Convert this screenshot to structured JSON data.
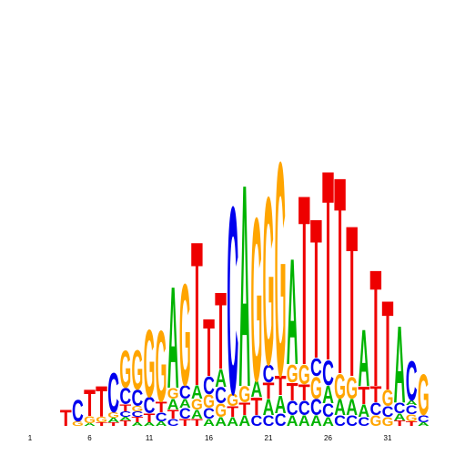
{
  "chart_data": {
    "type": "logo",
    "xlim": [
      0,
      35
    ],
    "xticks": [
      1,
      6,
      11,
      16,
      21,
      26,
      31
    ],
    "ylim": [
      0,
      300
    ],
    "colors": {
      "A": "#00b300",
      "C": "#0000ee",
      "G": "#ffa500",
      "T": "#ee0000"
    },
    "columns": [
      {
        "x": 4,
        "letters": [
          "T"
        ],
        "values": [
          18
        ]
      },
      {
        "x": 5,
        "letters": [
          "G",
          "C"
        ],
        "values": [
          5,
          25
        ]
      },
      {
        "x": 6,
        "letters": [
          "A",
          "G",
          "T"
        ],
        "values": [
          3,
          8,
          30
        ]
      },
      {
        "x": 7,
        "letters": [
          "T",
          "G",
          "T"
        ],
        "values": [
          4,
          6,
          35
        ]
      },
      {
        "x": 8,
        "letters": [
          "T",
          "A",
          "G",
          "C"
        ],
        "values": [
          4,
          5,
          6,
          45
        ]
      },
      {
        "x": 9,
        "letters": [
          "T",
          "A",
          "C",
          "T",
          "C",
          "G"
        ],
        "values": [
          6,
          4,
          6,
          8,
          18,
          42
        ]
      },
      {
        "x": 10,
        "letters": [
          "A",
          "T",
          "C",
          "G",
          "C",
          "G"
        ],
        "values": [
          4,
          6,
          6,
          6,
          18,
          45
        ]
      },
      {
        "x": 11,
        "letters": [
          "A",
          "T",
          "C",
          "G"
        ],
        "values": [
          4,
          10,
          18,
          76
        ]
      },
      {
        "x": 12,
        "letters": [
          "A",
          "C",
          "T",
          "G"
        ],
        "values": [
          5,
          10,
          12,
          80
        ]
      },
      {
        "x": 13,
        "letters": [
          "C",
          "T",
          "A",
          "G",
          "A"
        ],
        "values": [
          8,
          10,
          12,
          12,
          115
        ]
      },
      {
        "x": 14,
        "letters": [
          "T",
          "C",
          "A",
          "C",
          "G"
        ],
        "values": [
          8,
          12,
          10,
          15,
          115
        ]
      },
      {
        "x": 15,
        "letters": [
          "T",
          "A",
          "G",
          "A",
          "T"
        ],
        "values": [
          8,
          10,
          12,
          15,
          163
        ]
      },
      {
        "x": 16,
        "letters": [
          "A",
          "C",
          "G",
          "C",
          "T"
        ],
        "values": [
          8,
          12,
          15,
          20,
          65
        ]
      },
      {
        "x": 17,
        "letters": [
          "A",
          "G",
          "C",
          "A",
          "T"
        ],
        "values": [
          10,
          15,
          18,
          20,
          87
        ]
      },
      {
        "x": 18,
        "letters": [
          "A",
          "T",
          "G",
          "C"
        ],
        "values": [
          10,
          12,
          14,
          212
        ]
      },
      {
        "x": 19,
        "letters": [
          "A",
          "T",
          "G",
          "A"
        ],
        "values": [
          12,
          14,
          18,
          229
        ]
      },
      {
        "x": 20,
        "letters": [
          "C",
          "T",
          "A",
          "G"
        ],
        "values": [
          12,
          20,
          18,
          185
        ]
      },
      {
        "x": 21,
        "letters": [
          "C",
          "A",
          "T",
          "C",
          "G"
        ],
        "values": [
          12,
          18,
          18,
          20,
          190
        ]
      },
      {
        "x": 22,
        "letters": [
          "C",
          "A",
          "T",
          "G"
        ],
        "values": [
          14,
          20,
          22,
          242
        ]
      },
      {
        "x": 23,
        "letters": [
          "A",
          "C",
          "T",
          "G",
          "A"
        ],
        "values": [
          12,
          16,
          20,
          20,
          120
        ]
      },
      {
        "x": 24,
        "letters": [
          "A",
          "C",
          "T",
          "G",
          "T"
        ],
        "values": [
          12,
          16,
          18,
          22,
          192
        ]
      },
      {
        "x": 25,
        "letters": [
          "A",
          "C",
          "G",
          "C",
          "T"
        ],
        "values": [
          12,
          18,
          25,
          20,
          158
        ]
      },
      {
        "x": 26,
        "letters": [
          "A",
          "C",
          "A",
          "C",
          "T"
        ],
        "values": [
          10,
          15,
          20,
          28,
          215
        ]
      },
      {
        "x": 27,
        "letters": [
          "C",
          "A",
          "G",
          "T"
        ],
        "values": [
          12,
          18,
          28,
          223
        ]
      },
      {
        "x": 28,
        "letters": [
          "C",
          "A",
          "G",
          "T"
        ],
        "values": [
          12,
          18,
          25,
          171
        ]
      },
      {
        "x": 29,
        "letters": [
          "C",
          "A",
          "T",
          "A"
        ],
        "values": [
          10,
          14,
          20,
          64
        ]
      },
      {
        "x": 30,
        "letters": [
          "G",
          "C",
          "T",
          "T"
        ],
        "values": [
          12,
          14,
          18,
          132
        ]
      },
      {
        "x": 31,
        "letters": [
          "G",
          "C",
          "G",
          "T"
        ],
        "values": [
          10,
          12,
          18,
          101
        ]
      },
      {
        "x": 32,
        "letters": [
          "T",
          "A",
          "C",
          "A"
        ],
        "values": [
          6,
          8,
          12,
          87
        ]
      },
      {
        "x": 33,
        "letters": [
          "T",
          "G",
          "C",
          "A",
          "C"
        ],
        "values": [
          5,
          8,
          10,
          5,
          45
        ]
      },
      {
        "x": 34,
        "letters": [
          "A",
          "C",
          "G"
        ],
        "values": [
          4,
          8,
          46
        ]
      }
    ]
  }
}
